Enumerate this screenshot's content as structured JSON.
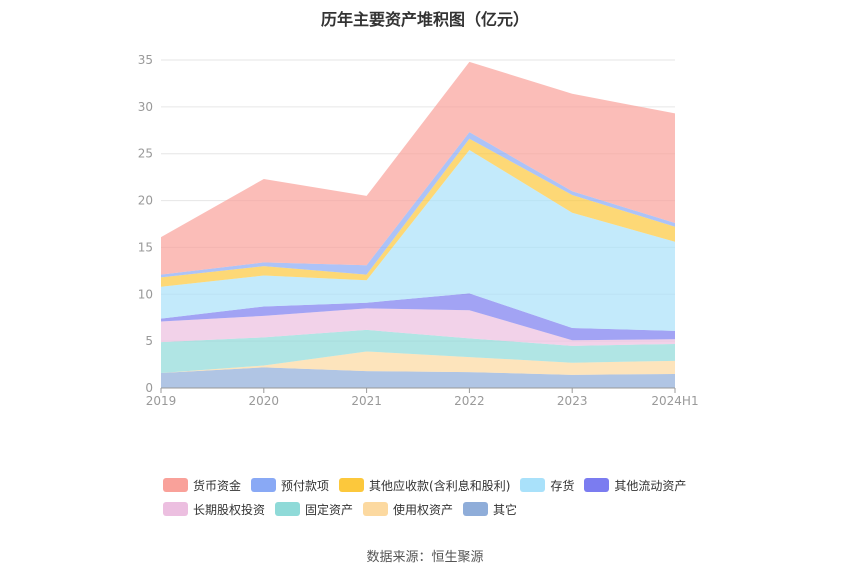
{
  "chart_data": {
    "type": "area",
    "title": "历年主要资产堆积图（亿元）",
    "source": "数据来源：恒生聚源",
    "categories": [
      "2019",
      "2020",
      "2021",
      "2022",
      "2023",
      "2024H1"
    ],
    "ylim": [
      0,
      35
    ],
    "yticks": [
      "0",
      "5",
      "10",
      "15",
      "20",
      "25",
      "30",
      "35"
    ],
    "stacked": true,
    "grid": true,
    "legend_position": "bottom",
    "series": [
      {
        "name": "其它",
        "color": "#8fadd9",
        "values": [
          1.6,
          2.2,
          1.8,
          1.7,
          1.4,
          1.5
        ]
      },
      {
        "name": "使用权资产",
        "color": "#fcd9a0",
        "values": [
          0.0,
          0.2,
          2.1,
          1.6,
          1.3,
          1.4
        ]
      },
      {
        "name": "固定资产",
        "color": "#8fdad8",
        "values": [
          3.3,
          3.0,
          2.3,
          2.0,
          1.8,
          1.8
        ]
      },
      {
        "name": "长期股权投资",
        "color": "#ecbfe0",
        "values": [
          2.2,
          2.3,
          2.3,
          3.0,
          0.6,
          0.5
        ]
      },
      {
        "name": "其他流动资产",
        "color": "#7b7cf0",
        "values": [
          0.3,
          1.0,
          0.6,
          1.8,
          1.3,
          0.9
        ]
      },
      {
        "name": "存货",
        "color": "#a9e1fa",
        "values": [
          3.4,
          3.3,
          2.4,
          15.3,
          12.3,
          9.5
        ]
      },
      {
        "name": "其他应收款(含利息和股利)",
        "color": "#fcc83c",
        "values": [
          1.0,
          1.0,
          0.6,
          1.2,
          1.9,
          1.6
        ]
      },
      {
        "name": "预付款项",
        "color": "#89a9f5",
        "values": [
          0.3,
          0.4,
          1.0,
          0.7,
          0.4,
          0.4
        ]
      },
      {
        "name": "货币资金",
        "color": "#f9a19a",
        "values": [
          4.0,
          8.9,
          7.4,
          7.5,
          10.4,
          11.7
        ]
      }
    ]
  }
}
